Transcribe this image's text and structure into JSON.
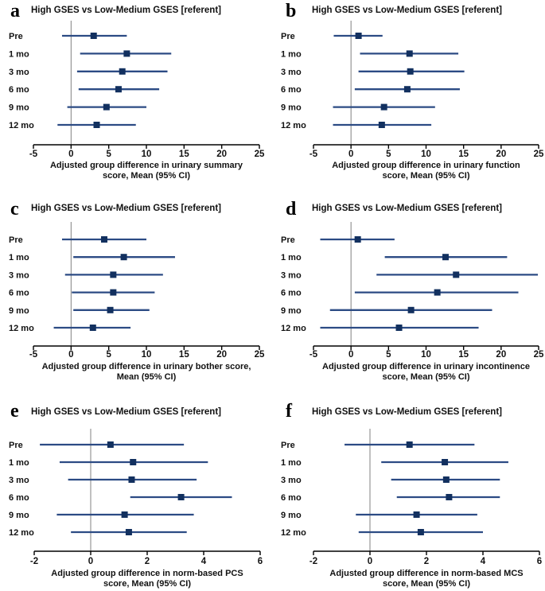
{
  "figure": {
    "background": "#ffffff",
    "comparison_label": "High GSES vs Low-Medium GSES [referent]"
  },
  "colors": {
    "ci_line": "#2c4b84",
    "marker": "#12305f",
    "axis": "#000000",
    "zero_line": "#808080",
    "text": "#111111"
  },
  "chart_data": [
    {
      "type": "scatter",
      "subtype": "forest",
      "panel_letter": "a",
      "title": "High GSES vs Low-Medium GSES [referent]",
      "categories": [
        "Pre",
        "1 mo",
        "3 mo",
        "6 mo",
        "9 mo",
        "12 mo"
      ],
      "means": [
        3.0,
        7.4,
        6.8,
        6.3,
        4.7,
        3.4
      ],
      "ci_lower": [
        -1.2,
        1.2,
        0.8,
        1.0,
        -0.5,
        -1.8
      ],
      "ci_upper": [
        7.4,
        13.3,
        12.8,
        11.7,
        10.0,
        8.6
      ],
      "xlabel": [
        "Adjusted group difference in urinary summary",
        "score, Mean (95% CI)"
      ],
      "xlim": [
        -5,
        25
      ],
      "xticks": [
        -5,
        0,
        5,
        10,
        15,
        20,
        25
      ],
      "legend": "none",
      "grid": false
    },
    {
      "type": "scatter",
      "subtype": "forest",
      "panel_letter": "b",
      "title": "High GSES vs Low-Medium GSES [referent]",
      "categories": [
        "Pre",
        "1 mo",
        "3 mo",
        "6 mo",
        "9 mo",
        "12 mo"
      ],
      "means": [
        1.0,
        7.8,
        7.9,
        7.5,
        4.4,
        4.1
      ],
      "ci_lower": [
        -2.3,
        1.2,
        1.0,
        0.5,
        -2.4,
        -2.4
      ],
      "ci_upper": [
        4.2,
        14.3,
        15.1,
        14.5,
        11.2,
        10.7
      ],
      "xlabel": [
        "Adjusted group difference in urinary function",
        "score, Mean (95% CI)"
      ],
      "xlim": [
        -5,
        25
      ],
      "xticks": [
        -5,
        0,
        5,
        10,
        15,
        20,
        25
      ],
      "legend": "none",
      "grid": false
    },
    {
      "type": "scatter",
      "subtype": "forest",
      "panel_letter": "c",
      "title": "High GSES vs Low-Medium GSES [referent]",
      "categories": [
        "Pre",
        "1 mo",
        "3 mo",
        "6 mo",
        "9 mo",
        "12 mo"
      ],
      "means": [
        4.4,
        7.0,
        5.6,
        5.6,
        5.2,
        2.9
      ],
      "ci_lower": [
        -1.2,
        0.3,
        -0.8,
        0.1,
        0.3,
        -2.3
      ],
      "ci_upper": [
        10.0,
        13.8,
        12.2,
        11.1,
        10.4,
        7.9
      ],
      "xlabel": [
        "Adjusted group difference in urinary bother score,",
        "Mean (95% CI)"
      ],
      "xlim": [
        -5,
        25
      ],
      "xticks": [
        -5,
        0,
        5,
        10,
        15,
        20,
        25
      ],
      "legend": "none",
      "grid": false
    },
    {
      "type": "scatter",
      "subtype": "forest",
      "panel_letter": "d",
      "title": "High GSES vs Low-Medium GSES [referent]",
      "categories": [
        "Pre",
        "1 mo",
        "3 mo",
        "6 mo",
        "9 mo",
        "12 mo"
      ],
      "means": [
        0.9,
        12.6,
        14.0,
        11.5,
        8.0,
        6.4
      ],
      "ci_lower": [
        -4.1,
        4.5,
        3.4,
        0.5,
        -2.8,
        -4.1
      ],
      "ci_upper": [
        5.8,
        20.8,
        24.9,
        22.3,
        18.8,
        17.0
      ],
      "xlabel": [
        "Adjusted group difference in urinary incontinence",
        "score, Mean (95% CI)"
      ],
      "xlim": [
        -5,
        25
      ],
      "xticks": [
        -5,
        0,
        5,
        10,
        15,
        20,
        25
      ],
      "legend": "none",
      "grid": false
    },
    {
      "type": "scatter",
      "subtype": "forest",
      "panel_letter": "e",
      "title": "High GSES vs Low-Medium GSES [referent]",
      "categories": [
        "Pre",
        "1 mo",
        "3 mo",
        "6 mo",
        "9 mo",
        "12 mo"
      ],
      "means": [
        0.7,
        1.5,
        1.45,
        3.2,
        1.2,
        1.35
      ],
      "ci_lower": [
        -1.8,
        -1.1,
        -0.8,
        1.4,
        -1.2,
        -0.7
      ],
      "ci_upper": [
        3.3,
        4.15,
        3.75,
        5.0,
        3.65,
        3.4
      ],
      "xlabel": [
        "Adjusted group difference in norm-based PCS",
        "score, Mean (95% CI)"
      ],
      "xlim": [
        -2,
        6
      ],
      "xticks": [
        -2,
        0,
        2,
        4,
        6
      ],
      "legend": "none",
      "grid": false
    },
    {
      "type": "scatter",
      "subtype": "forest",
      "panel_letter": "f",
      "title": "High GSES vs Low-Medium GSES [referent]",
      "categories": [
        "Pre",
        "1 mo",
        "3 mo",
        "6 mo",
        "9 mo",
        "12 mo"
      ],
      "means": [
        1.4,
        2.65,
        2.7,
        2.8,
        1.65,
        1.8
      ],
      "ci_lower": [
        -0.9,
        0.4,
        0.75,
        0.95,
        -0.5,
        -0.4
      ],
      "ci_upper": [
        3.7,
        4.9,
        4.6,
        4.6,
        3.8,
        4.0
      ],
      "xlabel": [
        "Adjusted group difference in norm-based MCS",
        "score, Mean (95% CI)"
      ],
      "xlim": [
        -2,
        6
      ],
      "xticks": [
        -2,
        0,
        2,
        4,
        6
      ],
      "legend": "none",
      "grid": false
    }
  ]
}
